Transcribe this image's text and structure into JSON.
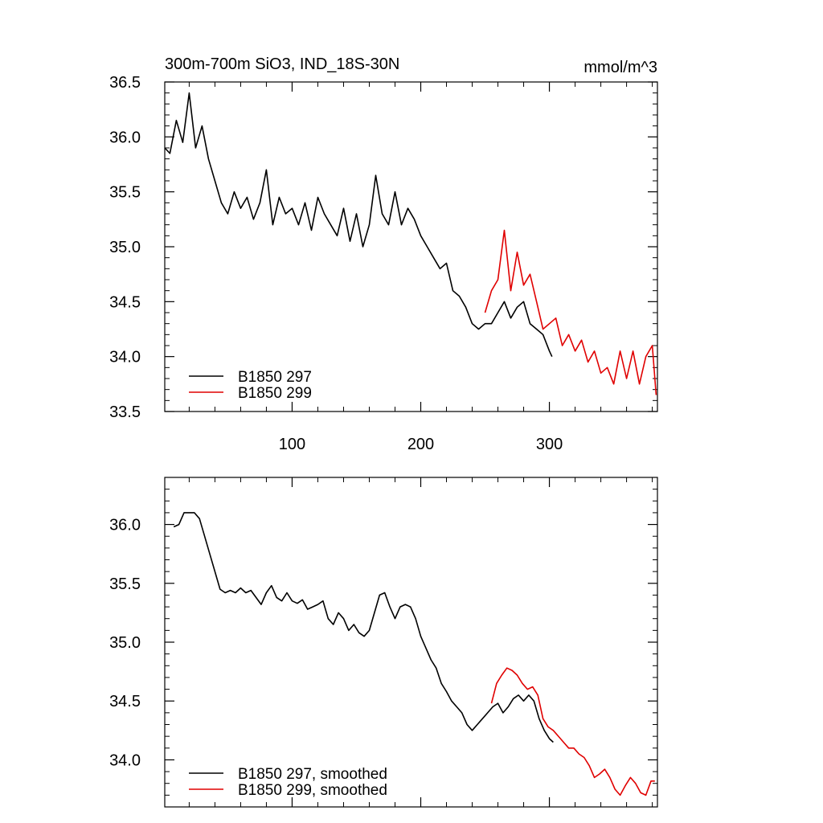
{
  "chart_data": [
    {
      "type": "line",
      "title": "300m-700m SiO3, IND_18S-30N",
      "units_label": "mmol/m^3",
      "xlim": [
        1,
        384
      ],
      "ylim": [
        33.5,
        36.5
      ],
      "x_ticks": [
        100,
        200,
        300
      ],
      "x_tick_labels": [
        "100",
        "200",
        "300"
      ],
      "y_ticks": [
        33.5,
        34.0,
        34.5,
        35.0,
        35.5,
        36.0,
        36.5
      ],
      "y_tick_labels": [
        "33.5",
        "34.0",
        "34.5",
        "35.0",
        "35.5",
        "36.0",
        "36.5"
      ],
      "legend_position": "bottom-left",
      "series": [
        {
          "name": "B1850 297",
          "color": "#000000",
          "x": [
            1,
            5,
            10,
            15,
            20,
            25,
            30,
            35,
            40,
            45,
            50,
            55,
            60,
            65,
            70,
            75,
            80,
            85,
            90,
            95,
            100,
            105,
            110,
            115,
            120,
            125,
            130,
            135,
            140,
            145,
            150,
            155,
            160,
            165,
            170,
            175,
            180,
            185,
            190,
            195,
            200,
            205,
            210,
            215,
            220,
            225,
            230,
            235,
            240,
            245,
            250,
            255,
            260,
            265,
            270,
            275,
            280,
            285,
            290,
            295,
            300,
            302
          ],
          "values": [
            35.9,
            35.85,
            36.15,
            35.95,
            36.4,
            35.9,
            36.1,
            35.8,
            35.6,
            35.4,
            35.3,
            35.5,
            35.35,
            35.45,
            35.25,
            35.4,
            35.7,
            35.2,
            35.45,
            35.3,
            35.35,
            35.2,
            35.4,
            35.15,
            35.45,
            35.3,
            35.2,
            35.1,
            35.35,
            35.05,
            35.3,
            35.0,
            35.2,
            35.65,
            35.3,
            35.2,
            35.5,
            35.2,
            35.35,
            35.25,
            35.1,
            35.0,
            34.9,
            34.8,
            34.85,
            34.6,
            34.55,
            34.45,
            34.3,
            34.25,
            34.3,
            34.3,
            34.4,
            34.5,
            34.35,
            34.45,
            34.5,
            34.3,
            34.25,
            34.2,
            34.05,
            34.0
          ]
        },
        {
          "name": "B1850 299",
          "color": "#e00000",
          "x": [
            250,
            255,
            260,
            265,
            270,
            275,
            280,
            285,
            290,
            295,
            300,
            305,
            310,
            315,
            320,
            325,
            330,
            335,
            340,
            345,
            350,
            355,
            360,
            365,
            370,
            375,
            380,
            383
          ],
          "values": [
            34.4,
            34.6,
            34.7,
            35.15,
            34.6,
            34.95,
            34.65,
            34.75,
            34.5,
            34.25,
            34.3,
            34.35,
            34.1,
            34.2,
            34.05,
            34.15,
            33.95,
            34.05,
            33.85,
            33.9,
            33.75,
            34.05,
            33.8,
            34.05,
            33.75,
            34.0,
            34.1,
            33.65
          ]
        }
      ]
    },
    {
      "type": "line",
      "title": "",
      "xlim": [
        1,
        384
      ],
      "ylim": [
        33.6,
        36.4
      ],
      "x_ticks": [
        100,
        200,
        300
      ],
      "x_tick_labels": [],
      "y_ticks": [
        34.0,
        34.5,
        35.0,
        35.5,
        36.0
      ],
      "y_tick_labels": [
        "34.0",
        "34.5",
        "35.0",
        "35.5",
        "36.0"
      ],
      "legend_position": "bottom-left",
      "series": [
        {
          "name": "B1850 297, smoothed",
          "color": "#000000",
          "x": [
            8,
            12,
            16,
            20,
            24,
            28,
            32,
            36,
            40,
            44,
            48,
            52,
            56,
            60,
            64,
            68,
            72,
            76,
            80,
            84,
            88,
            92,
            96,
            100,
            104,
            108,
            112,
            116,
            120,
            124,
            128,
            132,
            136,
            140,
            144,
            148,
            152,
            156,
            160,
            164,
            168,
            172,
            176,
            180,
            184,
            188,
            192,
            196,
            200,
            204,
            208,
            212,
            216,
            220,
            224,
            228,
            232,
            236,
            240,
            244,
            248,
            252,
            256,
            260,
            264,
            268,
            272,
            276,
            280,
            284,
            288,
            292,
            296,
            300,
            303
          ],
          "values": [
            35.98,
            36.0,
            36.1,
            36.1,
            36.1,
            36.05,
            35.9,
            35.75,
            35.6,
            35.45,
            35.42,
            35.44,
            35.42,
            35.46,
            35.42,
            35.44,
            35.38,
            35.32,
            35.42,
            35.48,
            35.38,
            35.35,
            35.42,
            35.35,
            35.33,
            35.36,
            35.28,
            35.3,
            35.32,
            35.35,
            35.2,
            35.15,
            35.25,
            35.2,
            35.1,
            35.15,
            35.08,
            35.05,
            35.1,
            35.25,
            35.4,
            35.42,
            35.3,
            35.2,
            35.3,
            35.32,
            35.3,
            35.2,
            35.05,
            34.95,
            34.85,
            34.78,
            34.65,
            34.58,
            34.5,
            34.45,
            34.4,
            34.3,
            34.25,
            34.3,
            34.35,
            34.4,
            34.45,
            34.48,
            34.4,
            34.45,
            34.52,
            34.55,
            34.5,
            34.55,
            34.5,
            34.35,
            34.25,
            34.18,
            34.15
          ]
        },
        {
          "name": "B1850 299, smoothed",
          "color": "#e00000",
          "x": [
            255,
            259,
            263,
            267,
            271,
            275,
            279,
            283,
            287,
            291,
            295,
            299,
            303,
            307,
            311,
            315,
            319,
            323,
            327,
            331,
            335,
            339,
            343,
            347,
            351,
            355,
            359,
            363,
            367,
            371,
            375,
            379,
            382
          ],
          "values": [
            34.48,
            34.65,
            34.72,
            34.78,
            34.76,
            34.72,
            34.65,
            34.6,
            34.62,
            34.55,
            34.35,
            34.28,
            34.25,
            34.2,
            34.15,
            34.1,
            34.1,
            34.05,
            34.02,
            33.95,
            33.85,
            33.88,
            33.92,
            33.85,
            33.75,
            33.7,
            33.78,
            33.85,
            33.8,
            33.72,
            33.7,
            33.82,
            33.82
          ]
        }
      ]
    }
  ]
}
